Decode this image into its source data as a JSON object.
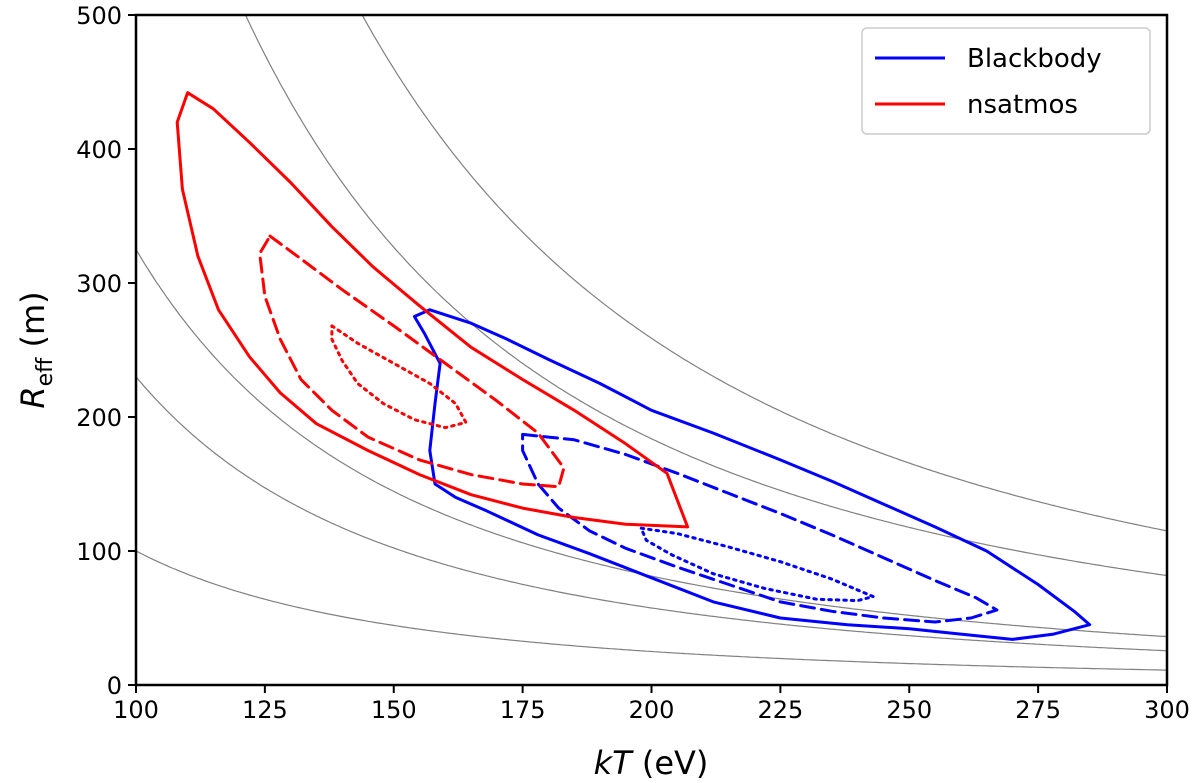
{
  "chart_data": {
    "type": "line",
    "title": "",
    "xlabel": {
      "italic": "kT",
      "rest": " (eV)"
    },
    "ylabel": {
      "main": "R",
      "sub": "eff",
      "rest": " (m)"
    },
    "xlim": [
      100,
      300
    ],
    "ylim": [
      0,
      500
    ],
    "xticks": [
      100,
      125,
      150,
      175,
      200,
      225,
      250,
      275,
      300
    ],
    "yticks": [
      0,
      100,
      200,
      300,
      400,
      500
    ],
    "grid": false,
    "legend_position": "top-right",
    "legend": [
      {
        "label": "Blackbody",
        "color": "#0000ff"
      },
      {
        "label": "nsatmos",
        "color": "#ff0000"
      }
    ],
    "reference_curves": {
      "color": "#808080",
      "form": "R = C / kT^2",
      "constants": [
        1000000,
        2300000,
        3250000,
        7350000,
        10350000
      ]
    },
    "series": [
      {
        "name": "Blackbody",
        "level": "outer",
        "style": "solid",
        "color": "#0000ff",
        "points": [
          [
            157,
            280
          ],
          [
            165,
            270
          ],
          [
            172,
            258
          ],
          [
            180,
            243
          ],
          [
            190,
            225
          ],
          [
            200,
            205
          ],
          [
            212,
            188
          ],
          [
            225,
            168
          ],
          [
            235,
            152
          ],
          [
            245,
            135
          ],
          [
            255,
            118
          ],
          [
            265,
            100
          ],
          [
            275,
            75
          ],
          [
            282,
            55
          ],
          [
            285,
            45
          ],
          [
            278,
            38
          ],
          [
            270,
            34
          ],
          [
            260,
            38
          ],
          [
            250,
            42
          ],
          [
            238,
            45
          ],
          [
            225,
            50
          ],
          [
            212,
            62
          ],
          [
            200,
            80
          ],
          [
            188,
            98
          ],
          [
            178,
            112
          ],
          [
            168,
            130
          ],
          [
            162,
            140
          ],
          [
            158,
            150
          ],
          [
            157,
            175
          ],
          [
            158,
            210
          ],
          [
            159,
            240
          ],
          [
            156,
            262
          ],
          [
            154,
            275
          ],
          [
            157,
            280
          ]
        ]
      },
      {
        "name": "Blackbody",
        "level": "middle",
        "style": "dashed",
        "color": "#0000ff",
        "points": [
          [
            175,
            187
          ],
          [
            185,
            183
          ],
          [
            195,
            172
          ],
          [
            205,
            158
          ],
          [
            215,
            143
          ],
          [
            225,
            128
          ],
          [
            235,
            112
          ],
          [
            245,
            95
          ],
          [
            255,
            78
          ],
          [
            263,
            65
          ],
          [
            267,
            56
          ],
          [
            262,
            50
          ],
          [
            255,
            47
          ],
          [
            245,
            50
          ],
          [
            235,
            55
          ],
          [
            225,
            62
          ],
          [
            215,
            75
          ],
          [
            205,
            88
          ],
          [
            195,
            102
          ],
          [
            188,
            115
          ],
          [
            182,
            132
          ],
          [
            178,
            150
          ],
          [
            175,
            175
          ],
          [
            175,
            187
          ]
        ]
      },
      {
        "name": "Blackbody",
        "level": "inner",
        "style": "dotted",
        "color": "#0000ff",
        "points": [
          [
            198,
            117
          ],
          [
            205,
            113
          ],
          [
            215,
            103
          ],
          [
            225,
            92
          ],
          [
            235,
            79
          ],
          [
            243,
            66
          ],
          [
            240,
            63
          ],
          [
            232,
            64
          ],
          [
            222,
            72
          ],
          [
            212,
            83
          ],
          [
            204,
            97
          ],
          [
            199,
            108
          ],
          [
            198,
            117
          ]
        ]
      },
      {
        "name": "nsatmos",
        "level": "outer",
        "style": "solid",
        "color": "#ff0000",
        "points": [
          [
            110,
            442
          ],
          [
            115,
            430
          ],
          [
            122,
            405
          ],
          [
            130,
            375
          ],
          [
            138,
            342
          ],
          [
            146,
            312
          ],
          [
            155,
            283
          ],
          [
            165,
            252
          ],
          [
            175,
            228
          ],
          [
            185,
            205
          ],
          [
            195,
            180
          ],
          [
            203,
            158
          ],
          [
            207,
            118
          ],
          [
            195,
            120
          ],
          [
            185,
            125
          ],
          [
            175,
            132
          ],
          [
            165,
            142
          ],
          [
            155,
            157
          ],
          [
            145,
            175
          ],
          [
            135,
            195
          ],
          [
            128,
            218
          ],
          [
            122,
            245
          ],
          [
            116,
            280
          ],
          [
            112,
            320
          ],
          [
            109,
            370
          ],
          [
            108,
            420
          ],
          [
            110,
            442
          ]
        ]
      },
      {
        "name": "nsatmos",
        "level": "middle",
        "style": "dashed",
        "color": "#ff0000",
        "points": [
          [
            126,
            335
          ],
          [
            132,
            318
          ],
          [
            140,
            295
          ],
          [
            150,
            268
          ],
          [
            160,
            240
          ],
          [
            170,
            212
          ],
          [
            178,
            188
          ],
          [
            183,
            162
          ],
          [
            182,
            148
          ],
          [
            175,
            150
          ],
          [
            165,
            157
          ],
          [
            155,
            168
          ],
          [
            145,
            185
          ],
          [
            138,
            205
          ],
          [
            132,
            228
          ],
          [
            128,
            258
          ],
          [
            125,
            290
          ],
          [
            124,
            322
          ],
          [
            126,
            335
          ]
        ]
      },
      {
        "name": "nsatmos",
        "level": "inner",
        "style": "dotted",
        "color": "#ff0000",
        "points": [
          [
            138,
            268
          ],
          [
            143,
            255
          ],
          [
            150,
            240
          ],
          [
            157,
            225
          ],
          [
            162,
            210
          ],
          [
            164,
            196
          ],
          [
            160,
            192
          ],
          [
            154,
            198
          ],
          [
            148,
            210
          ],
          [
            143,
            225
          ],
          [
            140,
            242
          ],
          [
            138,
            258
          ],
          [
            138,
            268
          ]
        ]
      }
    ]
  }
}
